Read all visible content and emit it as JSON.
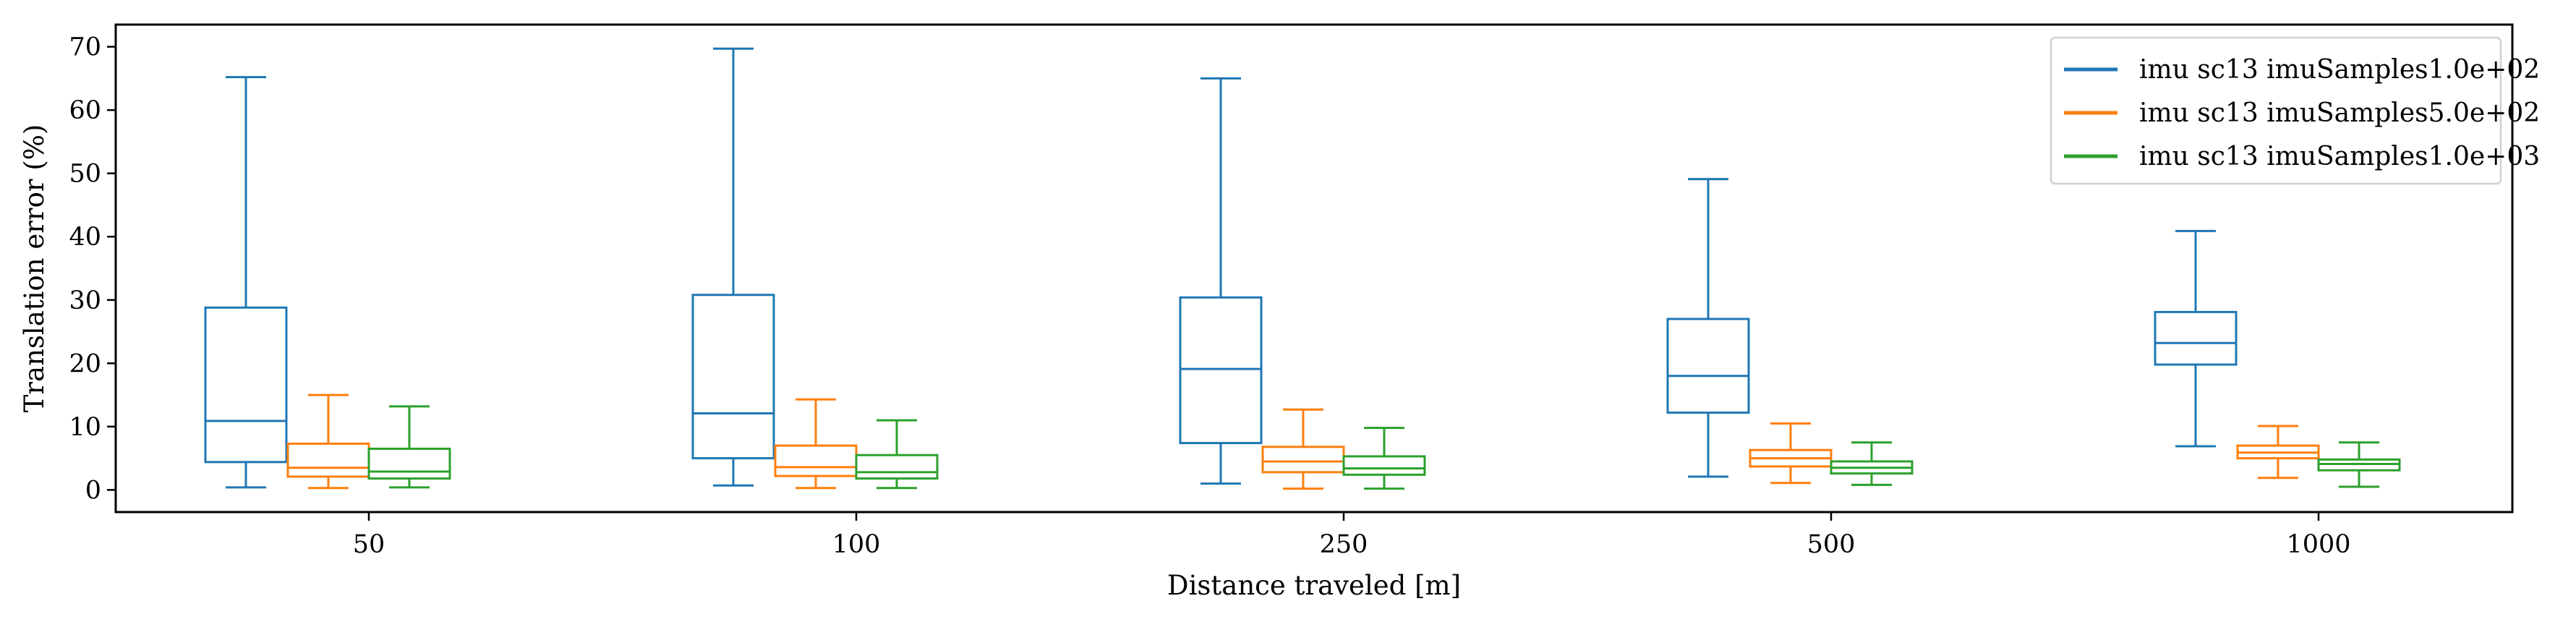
{
  "chart_data": {
    "type": "boxplot",
    "xlabel": "Distance traveled [m]",
    "ylabel": "Translation error (%)",
    "categories": [
      "50",
      "100",
      "250",
      "500",
      "1000"
    ],
    "ylim": [
      -3.5,
      73.5
    ],
    "yticks": [
      0,
      10,
      20,
      30,
      40,
      50,
      60,
      70
    ],
    "grid": false,
    "legend_position": "top-right",
    "series": [
      {
        "name": "imu sc13 imuSamples1.0e+02",
        "color": "#1f77b4",
        "boxes": [
          {
            "whislo": 0.4,
            "q1": 4.4,
            "med": 10.9,
            "q3": 28.8,
            "whishi": 65.2
          },
          {
            "whislo": 0.7,
            "q1": 5.0,
            "med": 12.1,
            "q3": 30.8,
            "whishi": 69.7
          },
          {
            "whislo": 1.0,
            "q1": 7.4,
            "med": 19.1,
            "q3": 30.4,
            "whishi": 65.0
          },
          {
            "whislo": 2.1,
            "q1": 12.2,
            "med": 18.0,
            "q3": 27.0,
            "whishi": 49.1
          },
          {
            "whislo": 6.9,
            "q1": 19.8,
            "med": 23.2,
            "q3": 28.1,
            "whishi": 40.9
          }
        ]
      },
      {
        "name": "imu sc13 imuSamples5.0e+02",
        "color": "#ff7f0e",
        "boxes": [
          {
            "whislo": 0.3,
            "q1": 2.1,
            "med": 3.5,
            "q3": 7.3,
            "whishi": 15.0
          },
          {
            "whislo": 0.3,
            "q1": 2.2,
            "med": 3.6,
            "q3": 7.0,
            "whishi": 14.3
          },
          {
            "whislo": 0.2,
            "q1": 2.8,
            "med": 4.5,
            "q3": 6.8,
            "whishi": 12.7
          },
          {
            "whislo": 1.1,
            "q1": 3.7,
            "med": 5.0,
            "q3": 6.3,
            "whishi": 10.5
          },
          {
            "whislo": 1.9,
            "q1": 5.0,
            "med": 5.9,
            "q3": 7.0,
            "whishi": 10.1
          }
        ]
      },
      {
        "name": "imu sc13 imuSamples1.0e+03",
        "color": "#2ca02c",
        "boxes": [
          {
            "whislo": 0.4,
            "q1": 1.8,
            "med": 2.9,
            "q3": 6.5,
            "whishi": 13.2
          },
          {
            "whislo": 0.3,
            "q1": 1.8,
            "med": 2.8,
            "q3": 5.5,
            "whishi": 11.0
          },
          {
            "whislo": 0.2,
            "q1": 2.4,
            "med": 3.4,
            "q3": 5.3,
            "whishi": 9.8
          },
          {
            "whislo": 0.8,
            "q1": 2.6,
            "med": 3.5,
            "q3": 4.5,
            "whishi": 7.5
          },
          {
            "whislo": 0.5,
            "q1": 3.1,
            "med": 4.1,
            "q3": 4.8,
            "whishi": 7.5
          }
        ]
      }
    ]
  }
}
